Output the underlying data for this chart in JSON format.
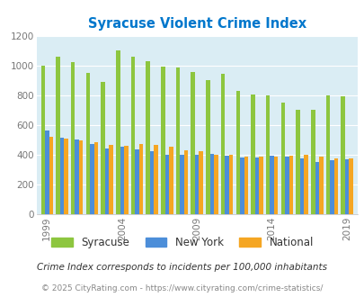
{
  "title": "Syracuse Violent Crime Index",
  "x_tick_labels": [
    "1999",
    "2004",
    "2009",
    "2014",
    "2019"
  ],
  "x_tick_positions": [
    0,
    5,
    10,
    15,
    20
  ],
  "syracuse": [
    1000,
    1060,
    1020,
    950,
    890,
    1100,
    1060,
    1030,
    990,
    985,
    955,
    900,
    945,
    830,
    805,
    800,
    750,
    700,
    700,
    800,
    790
  ],
  "new_york": [
    560,
    510,
    500,
    470,
    440,
    450,
    435,
    420,
    400,
    395,
    400,
    405,
    390,
    380,
    380,
    390,
    385,
    375,
    350,
    360,
    365
  ],
  "national": [
    520,
    505,
    495,
    480,
    465,
    460,
    470,
    465,
    455,
    430,
    420,
    400,
    395,
    385,
    385,
    385,
    390,
    395,
    385,
    375,
    375
  ],
  "bar_color_syracuse": "#8dc63f",
  "bar_color_newyork": "#4c8ed9",
  "bar_color_national": "#f5a623",
  "plot_bg_color": "#daedf4",
  "title_color": "#0077cc",
  "legend_labels": [
    "Syracuse",
    "New York",
    "National"
  ],
  "footnote": "Crime Index corresponds to incidents per 100,000 inhabitants",
  "copyright": "© 2025 CityRating.com - https://www.cityrating.com/crime-statistics/",
  "ylim": [
    0,
    1200
  ],
  "yticks": [
    0,
    200,
    400,
    600,
    800,
    1000,
    1200
  ]
}
